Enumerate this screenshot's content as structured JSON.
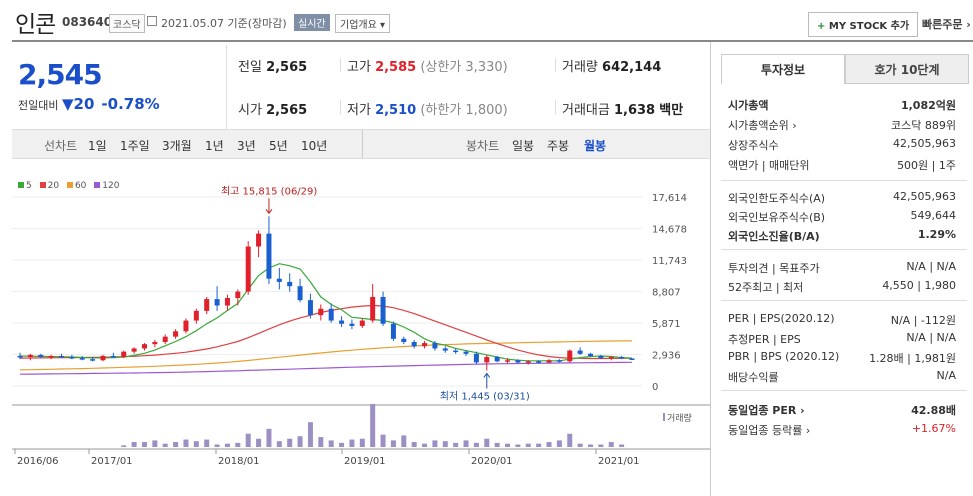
{
  "stock": {
    "name": "인콘",
    "code": "083640",
    "market": "코스닥",
    "date": "2021.05.07",
    "date_suffix": "기준(장마감)",
    "realtime": "실시간",
    "company_info": "기업개요 ▾",
    "my_stock": "MY STOCK 추가",
    "my_stock_plus": "+",
    "quick_order": "빠른주문 ›"
  },
  "quote": {
    "price": "2,545",
    "change_label": "전일대비",
    "change_arrow": "▼",
    "change": "20",
    "change_pct": "-0.78%",
    "prev_close_label": "전일",
    "prev_close": "2,565",
    "high_label": "고가",
    "high": "2,585",
    "upper_limit": "(상한가 3,330)",
    "volume_label": "거래량",
    "volume": "642,144",
    "open_label": "시가",
    "open": "2,565",
    "low_label": "저가",
    "low": "2,510",
    "lower_limit": "(하한가 1,800)",
    "value_label": "거래대금",
    "value": "1,638",
    "value_unit": "백만"
  },
  "period_bar": {
    "line_label": "선차트",
    "periods": [
      "1일",
      "1주일",
      "3개월",
      "1년",
      "3년",
      "5년",
      "10년"
    ],
    "candle_label": "봉차트",
    "candles": [
      "일봉",
      "주봉",
      "월봉"
    ],
    "selected_candle": "월봉"
  },
  "chart_data": {
    "type": "line",
    "legend": [
      "5",
      "20",
      "60",
      "120"
    ],
    "legend_colors": [
      "#3aa83a",
      "#e04040",
      "#e8a030",
      "#9b59d0"
    ],
    "up_color": "#e0202a",
    "down_color": "#1a5fd0",
    "volume_color": "#9c8fc4",
    "yticks": [
      "17,614",
      "14,678",
      "11,743",
      "8,807",
      "5,871",
      "2,936",
      "0"
    ],
    "ylim": [
      0,
      17614
    ],
    "xticks": [
      "2016/06",
      "2017/01",
      "2018/01",
      "2019/01",
      "2020/01",
      "2021/01"
    ],
    "max_label": "최고 15,815 (06/29)",
    "min_label": "최저 1,445 (03/31)",
    "volume_label": "거래량",
    "months": 60,
    "candles": [
      [
        2800,
        3100,
        2500,
        2700
      ],
      [
        2700,
        3000,
        2400,
        2900
      ],
      [
        2900,
        3000,
        2600,
        2700
      ],
      [
        2700,
        2900,
        2500,
        2800
      ],
      [
        2800,
        3000,
        2600,
        2700
      ],
      [
        2700,
        2900,
        2500,
        2600
      ],
      [
        2600,
        2800,
        2400,
        2500
      ],
      [
        2500,
        2700,
        2300,
        2400
      ],
      [
        2400,
        2900,
        2300,
        2800
      ],
      [
        2800,
        3100,
        2600,
        2700
      ],
      [
        2700,
        3300,
        2600,
        3200
      ],
      [
        3200,
        3600,
        3000,
        3500
      ],
      [
        3500,
        4000,
        3300,
        3900
      ],
      [
        3900,
        4300,
        3600,
        4100
      ],
      [
        4100,
        4800,
        3900,
        4600
      ],
      [
        4600,
        5300,
        4400,
        5100
      ],
      [
        5100,
        6300,
        4900,
        6100
      ],
      [
        6100,
        7200,
        5800,
        7000
      ],
      [
        7000,
        8300,
        6700,
        8100
      ],
      [
        8100,
        9300,
        7000,
        7500
      ],
      [
        7500,
        8500,
        7000,
        8200
      ],
      [
        8200,
        9000,
        7500,
        8800
      ],
      [
        8800,
        13500,
        8500,
        13000
      ],
      [
        13000,
        14500,
        12000,
        14200
      ],
      [
        14200,
        15815,
        9500,
        10000
      ],
      [
        10000,
        11000,
        9000,
        9700
      ],
      [
        9700,
        10500,
        8800,
        9300
      ],
      [
        9300,
        10000,
        7800,
        8000
      ],
      [
        8000,
        8600,
        6300,
        6600
      ],
      [
        6600,
        7600,
        6100,
        7200
      ],
      [
        7200,
        7700,
        5900,
        6100
      ],
      [
        6100,
        6500,
        5500,
        5800
      ],
      [
        5800,
        6200,
        5300,
        5600
      ],
      [
        5600,
        6300,
        5400,
        6100
      ],
      [
        6100,
        9500,
        5900,
        8300
      ],
      [
        8300,
        8800,
        5600,
        5800
      ],
      [
        5800,
        6000,
        4200,
        4400
      ],
      [
        4400,
        4600,
        3900,
        4100
      ],
      [
        4100,
        4300,
        3500,
        3700
      ],
      [
        3700,
        4200,
        3500,
        4000
      ],
      [
        4000,
        4200,
        3300,
        3500
      ],
      [
        3500,
        3700,
        3100,
        3300
      ],
      [
        3300,
        3500,
        3000,
        3200
      ],
      [
        3200,
        3300,
        2800,
        3000
      ],
      [
        3000,
        3200,
        2000,
        2200
      ],
      [
        2200,
        2900,
        1445,
        2700
      ],
      [
        2700,
        2800,
        2200,
        2300
      ],
      [
        2300,
        2600,
        2100,
        2400
      ],
      [
        2400,
        2500,
        2100,
        2200
      ],
      [
        2200,
        2400,
        2000,
        2300
      ],
      [
        2300,
        2400,
        2100,
        2200
      ],
      [
        2200,
        2500,
        2100,
        2400
      ],
      [
        2400,
        2500,
        2200,
        2300
      ],
      [
        2300,
        3400,
        2200,
        3300
      ],
      [
        3300,
        3600,
        2900,
        3000
      ],
      [
        3000,
        3100,
        2700,
        2800
      ],
      [
        2800,
        2900,
        2500,
        2600
      ],
      [
        2600,
        2800,
        2400,
        2700
      ],
      [
        2700,
        2800,
        2500,
        2565
      ],
      [
        2565,
        2585,
        2510,
        2545
      ]
    ],
    "ma5": [
      2800,
      2780,
      2760,
      2740,
      2730,
      2700,
      2660,
      2620,
      2620,
      2640,
      2700,
      2850,
      3050,
      3350,
      3750,
      4150,
      4600,
      5150,
      5800,
      6350,
      7050,
      7700,
      9000,
      10300,
      11000,
      11400,
      11200,
      10900,
      9700,
      8300,
      7600,
      7100,
      6400,
      6300,
      6200,
      6100,
      5900,
      5500,
      5000,
      4400,
      4000,
      3800,
      3500,
      3300,
      3100,
      2900,
      2700,
      2500,
      2400,
      2350,
      2350,
      2350,
      2350,
      2500,
      2650,
      2750,
      2800,
      2750,
      2650,
      2600
    ],
    "ma20": [
      2600,
      2610,
      2620,
      2630,
      2640,
      2650,
      2660,
      2670,
      2680,
      2700,
      2730,
      2770,
      2820,
      2880,
      2960,
      3050,
      3150,
      3300,
      3450,
      3650,
      3900,
      4150,
      4500,
      4900,
      5300,
      5700,
      6050,
      6350,
      6600,
      6850,
      7050,
      7200,
      7350,
      7450,
      7500,
      7450,
      7300,
      7050,
      6750,
      6400,
      6050,
      5700,
      5350,
      5000,
      4650,
      4300,
      3950,
      3650,
      3350,
      3100,
      2900,
      2750,
      2650,
      2600,
      2580,
      2560,
      2560,
      2570,
      2580,
      2580
    ],
    "ma60": [
      1500,
      1520,
      1540,
      1560,
      1580,
      1600,
      1620,
      1650,
      1680,
      1710,
      1740,
      1770,
      1800,
      1840,
      1880,
      1920,
      1970,
      2020,
      2080,
      2140,
      2210,
      2290,
      2380,
      2480,
      2580,
      2680,
      2780,
      2880,
      2980,
      3080,
      3170,
      3260,
      3340,
      3420,
      3490,
      3560,
      3620,
      3680,
      3730,
      3780,
      3820,
      3860,
      3890,
      3920,
      3950,
      3970,
      3990,
      4010,
      4030,
      4050,
      4070,
      4090,
      4110,
      4130,
      4150,
      4170,
      4180,
      4190,
      4200,
      4200
    ],
    "ma120": [
      1100,
      1110,
      1120,
      1130,
      1140,
      1150,
      1160,
      1170,
      1180,
      1190,
      1200,
      1215,
      1230,
      1245,
      1260,
      1280,
      1300,
      1320,
      1345,
      1370,
      1395,
      1420,
      1450,
      1480,
      1510,
      1540,
      1570,
      1600,
      1630,
      1660,
      1690,
      1720,
      1750,
      1775,
      1800,
      1825,
      1850,
      1875,
      1900,
      1925,
      1950,
      1970,
      1990,
      2010,
      2030,
      2050,
      2065,
      2080,
      2095,
      2110,
      2120,
      2130,
      2140,
      2150,
      2160,
      2170,
      2180,
      2190,
      2200,
      2210
    ],
    "volume": [
      0,
      0,
      0,
      0,
      0,
      0,
      0,
      0,
      0,
      0,
      2,
      6,
      6,
      8,
      4,
      6,
      9,
      7,
      9,
      3,
      4,
      5,
      16,
      10,
      22,
      7,
      10,
      13,
      30,
      12,
      8,
      5,
      9,
      10,
      52,
      15,
      8,
      14,
      6,
      4,
      8,
      7,
      5,
      8,
      5,
      10,
      5,
      4,
      3,
      4,
      4,
      6,
      8,
      16,
      4,
      3,
      3,
      6,
      3,
      0
    ]
  },
  "panel": {
    "tab_invest": "투자정보",
    "tab_hoga": "호가 10단계",
    "rows": [
      {
        "k": "시가총액",
        "v": "1,082억원",
        "bold": true
      },
      {
        "k": "시가총액순위 ›",
        "v": "코스닥 889위"
      },
      {
        "k": "상장주식수",
        "v": "42,505,963"
      },
      {
        "k": "액면가 | 매매단위",
        "v": "500원 | 1주"
      },
      {
        "k": "외국인한도주식수(A)",
        "v": "42,505,963"
      },
      {
        "k": "외국인보유주식수(B)",
        "v": "549,644"
      },
      {
        "k": "외국인소진율(B/A)",
        "v": "1.29%",
        "bold": true
      },
      {
        "k": "투자의견 | 목표주가",
        "v": "N/A | N/A"
      },
      {
        "k": "52주최고 | 최저",
        "v": "4,550 | 1,980"
      },
      {
        "k": "PER | EPS(2020.12)",
        "v": "N/A | -112원"
      },
      {
        "k": "추정PER | EPS",
        "v": "N/A | N/A"
      },
      {
        "k": "PBR | BPS (2020.12)",
        "v": "1.28배 | 1,981원"
      },
      {
        "k": "배당수익률",
        "v": "N/A"
      },
      {
        "k": "동일업종 PER ›",
        "v": "42.88배",
        "bold": true
      },
      {
        "k": "동일업종 등락률 ›",
        "v": "+1.67%",
        "red": true
      }
    ]
  }
}
